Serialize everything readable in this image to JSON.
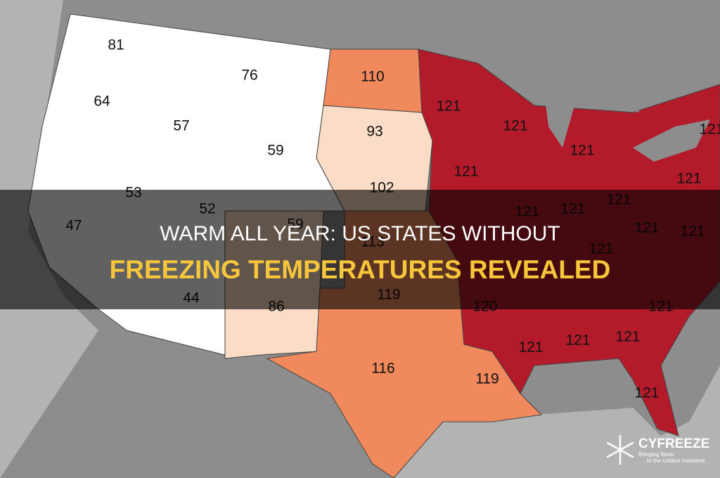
{
  "title": {
    "line1": "WARM ALL YEAR: US STATES WITHOUT",
    "line2": "FREEZING TEMPERATURES REVEALED"
  },
  "map": {
    "labels": [
      "81",
      "76",
      "110",
      "121",
      "64",
      "57",
      "93",
      "59",
      "121",
      "121",
      "121",
      "121",
      "53",
      "102",
      "52",
      "121",
      "121",
      "121",
      "121",
      "47",
      "59",
      "113",
      "121",
      "121",
      "121",
      "44",
      "86",
      "119",
      "120",
      "121",
      "121",
      "121",
      "121",
      "116",
      "119",
      "121"
    ]
  },
  "logo": {
    "name": "CYFREEZE",
    "tagline1": "Bringing flavor",
    "tagline2": "to the coldest moments"
  }
}
